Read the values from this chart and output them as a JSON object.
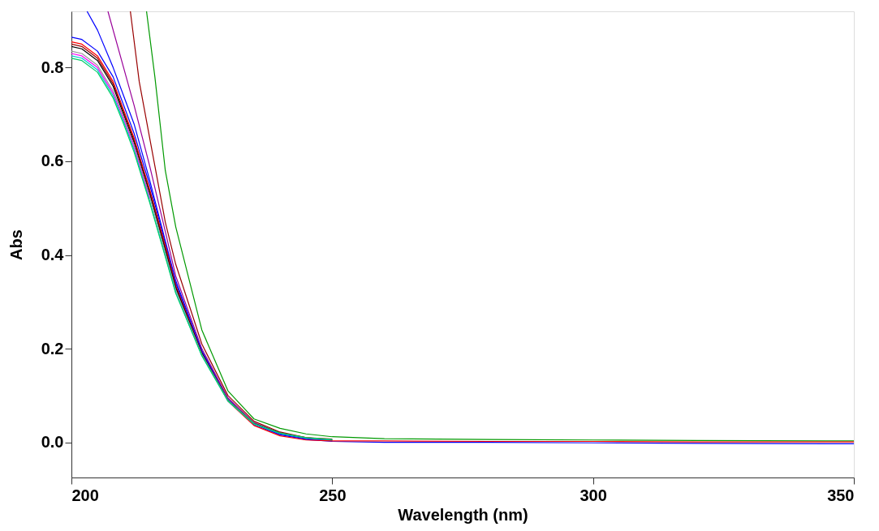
{
  "chart_data": {
    "type": "line",
    "xlabel": "Wavelength (nm)",
    "ylabel": "Abs",
    "xlim": [
      200,
      350
    ],
    "ylim": [
      -0.075,
      0.92
    ],
    "xticks": [
      200,
      250,
      300,
      350
    ],
    "yticks": [
      {
        "value": 0,
        "label": "0.0"
      },
      0.2,
      0.4,
      0.6,
      0.8
    ],
    "grid": false,
    "legend": false,
    "marker": "none",
    "line_style": "solid",
    "x": [
      200,
      202,
      205,
      208,
      210,
      212,
      215,
      218,
      220,
      225,
      230,
      235,
      240,
      245,
      250,
      260,
      280,
      300,
      320,
      350
    ],
    "series": [
      {
        "color": "#0000ff",
        "x": [
          203,
          205,
          208,
          210,
          212,
          215,
          218,
          220,
          225,
          230,
          235,
          240,
          245,
          250
        ],
        "values": [
          0.92,
          0.88,
          0.8,
          0.74,
          0.68,
          0.56,
          0.43,
          0.345,
          0.195,
          0.092,
          0.04,
          0.018,
          0.008,
          0.004
        ]
      },
      {
        "color": "#990099",
        "x": [
          207,
          210,
          212,
          215,
          218,
          220,
          225,
          230,
          235,
          240,
          245,
          250
        ],
        "values": [
          0.92,
          0.8,
          0.72,
          0.59,
          0.45,
          0.355,
          0.2,
          0.095,
          0.042,
          0.02,
          0.009,
          0.005
        ]
      },
      {
        "color": "#990000",
        "x": [
          211.3,
          213,
          215,
          218,
          220,
          225,
          230,
          235,
          240,
          245,
          250
        ],
        "values": [
          0.92,
          0.77,
          0.65,
          0.47,
          0.38,
          0.21,
          0.1,
          0.045,
          0.022,
          0.01,
          0.007
        ]
      },
      {
        "color": "#009900",
        "x": [
          214.4,
          216,
          218,
          220,
          225,
          230,
          235,
          240,
          245,
          250,
          260,
          280,
          300,
          320,
          350
        ],
        "values": [
          0.92,
          0.78,
          0.58,
          0.46,
          0.24,
          0.11,
          0.05,
          0.03,
          0.018,
          0.012,
          0.008,
          0.006,
          0.005,
          0.004,
          0.003
        ]
      },
      {
        "color": "#0000ff",
        "values": [
          0.865,
          0.86,
          0.835,
          0.78,
          0.72,
          0.66,
          0.55,
          0.425,
          0.34,
          0.195,
          0.09,
          0.038,
          0.016,
          0.006,
          0.002,
          0.0,
          0.0,
          -0.001,
          -0.002,
          -0.003
        ]
      },
      {
        "color": "#ff0000",
        "values": [
          0.855,
          0.85,
          0.825,
          0.77,
          0.71,
          0.65,
          0.54,
          0.42,
          0.335,
          0.19,
          0.088,
          0.036,
          0.014,
          0.005,
          0.003,
          0.003,
          0.002,
          0.002,
          0.001,
          0.001
        ]
      },
      {
        "color": "#990000",
        "values": [
          0.85,
          0.845,
          0.82,
          0.765,
          0.705,
          0.645,
          0.535,
          0.415,
          0.332,
          0.19,
          0.09,
          0.04,
          0.02,
          0.01,
          0.005,
          null,
          null,
          null,
          null,
          null
        ]
      },
      {
        "color": "#000000",
        "values": [
          0.845,
          0.84,
          0.815,
          0.76,
          0.7,
          0.64,
          0.53,
          0.41,
          0.33,
          0.19,
          0.09,
          0.04,
          0.02,
          null,
          null,
          null,
          null,
          null,
          null,
          null
        ]
      },
      {
        "color": "#999999",
        "values": [
          0.835,
          0.83,
          0.805,
          0.75,
          0.695,
          0.635,
          0.525,
          0.405,
          0.325,
          0.188,
          0.09,
          0.04,
          null,
          null,
          null,
          null,
          null,
          null,
          null,
          null
        ]
      },
      {
        "color": "#ff00ff",
        "values": [
          0.83,
          0.825,
          0.8,
          0.745,
          0.69,
          0.63,
          0.52,
          null,
          null,
          null,
          null,
          null,
          null,
          null,
          null,
          null,
          null,
          null,
          null,
          null
        ]
      },
      {
        "color": "#00cccc",
        "values": [
          0.825,
          0.82,
          0.795,
          0.74,
          0.685,
          0.625,
          0.515,
          0.398,
          0.32,
          0.185,
          0.088,
          0.039,
          0.019,
          0.009,
          0.005,
          null,
          null,
          null,
          null,
          null
        ]
      },
      {
        "color": "#00cc66",
        "values": [
          0.82,
          0.815,
          0.79,
          0.735,
          0.68,
          0.62,
          0.512,
          0.396,
          0.318,
          0.185,
          0.089,
          0.04,
          0.02,
          0.01,
          0.006,
          null,
          null,
          null,
          null,
          null
        ]
      }
    ]
  }
}
